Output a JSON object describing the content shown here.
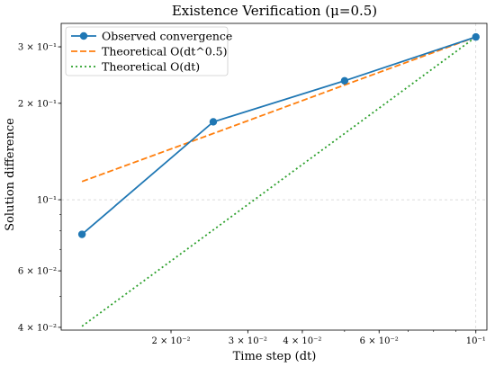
{
  "chart_data": {
    "type": "line",
    "title": "Existence Verification (μ=0.5)",
    "xlabel": "Time step (dt)",
    "ylabel": "Solution difference",
    "xscale": "log",
    "yscale": "log",
    "xlim": [
      0.0112,
      0.106
    ],
    "ylim": [
      0.0392,
      0.355
    ],
    "x_ticks": [
      {
        "value": 0.02,
        "label": "2 × 10⁻²"
      },
      {
        "value": 0.03,
        "label": "3 × 10⁻²"
      },
      {
        "value": 0.04,
        "label": "4 × 10⁻²"
      },
      {
        "value": 0.06,
        "label": "6 × 10⁻²"
      },
      {
        "value": 0.1,
        "label": "10⁻¹"
      }
    ],
    "y_ticks": [
      {
        "value": 0.04,
        "label": "4 × 10⁻²"
      },
      {
        "value": 0.06,
        "label": "6 × 10⁻²"
      },
      {
        "value": 0.1,
        "label": "10⁻¹"
      },
      {
        "value": 0.2,
        "label": "2 × 10⁻¹"
      },
      {
        "value": 0.3,
        "label": "3 × 10⁻¹"
      }
    ],
    "grid": true,
    "legend_position": "top-left",
    "series": [
      {
        "name": "Observed convergence",
        "color": "#1f77b4",
        "style": "solid",
        "markers": true,
        "x": [
          0.0125,
          0.025,
          0.05,
          0.1
        ],
        "y": [
          0.078,
          0.175,
          0.235,
          0.322
        ]
      },
      {
        "name": "Theoretical O(dt^0.5)",
        "color": "#ff7f0e",
        "style": "dashed",
        "markers": false,
        "x": [
          0.0125,
          0.025,
          0.05,
          0.1
        ],
        "y": [
          0.114,
          0.161,
          0.228,
          0.322
        ]
      },
      {
        "name": "Theoretical O(dt)",
        "color": "#2ca02c",
        "style": "dotted",
        "markers": false,
        "x": [
          0.0125,
          0.025,
          0.05,
          0.1
        ],
        "y": [
          0.0403,
          0.0805,
          0.161,
          0.322
        ]
      }
    ]
  }
}
